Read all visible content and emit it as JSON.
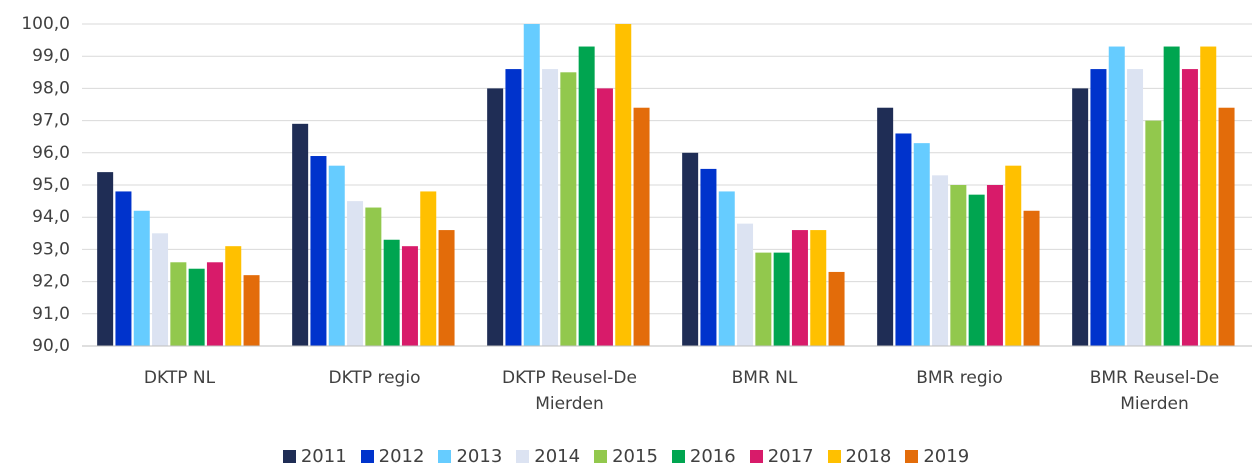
{
  "chart_data": {
    "type": "bar",
    "categories": [
      "DKTP NL",
      "DKTP regio",
      "DKTP Reusel-De Mierden",
      "BMR NL",
      "BMR regio",
      "BMR Reusel-De Mierden"
    ],
    "series": [
      {
        "name": "2011",
        "color": "#1f2d55",
        "values": [
          95.4,
          96.9,
          98.0,
          96.0,
          97.4,
          98.0
        ]
      },
      {
        "name": "2012",
        "color": "#0033cc",
        "values": [
          94.8,
          95.9,
          98.6,
          95.5,
          96.6,
          98.6
        ]
      },
      {
        "name": "2013",
        "color": "#66ccff",
        "values": [
          94.2,
          95.6,
          100.0,
          94.8,
          96.3,
          99.3
        ]
      },
      {
        "name": "2014",
        "color": "#dce3f2",
        "values": [
          93.5,
          94.5,
          98.6,
          93.8,
          95.3,
          98.6
        ]
      },
      {
        "name": "2015",
        "color": "#92c84d",
        "values": [
          92.6,
          94.3,
          98.5,
          92.9,
          95.0,
          97.0
        ]
      },
      {
        "name": "2016",
        "color": "#00a550",
        "values": [
          92.4,
          93.3,
          99.3,
          92.9,
          94.7,
          99.3
        ]
      },
      {
        "name": "2017",
        "color": "#d81b6a",
        "values": [
          92.6,
          93.1,
          98.0,
          93.6,
          95.0,
          98.6
        ]
      },
      {
        "name": "2018",
        "color": "#ffc000",
        "values": [
          93.1,
          94.8,
          100.0,
          93.6,
          95.6,
          99.3
        ]
      },
      {
        "name": "2019",
        "color": "#e36c0a",
        "values": [
          92.2,
          93.6,
          97.4,
          92.3,
          94.2,
          97.4
        ]
      }
    ],
    "ylim": [
      90,
      100
    ],
    "yticks": [
      {
        "value": 90,
        "label": "90,0"
      },
      {
        "value": 91,
        "label": "91,0"
      },
      {
        "value": 92,
        "label": "92,0"
      },
      {
        "value": 93,
        "label": "93,0"
      },
      {
        "value": 94,
        "label": "94,0"
      },
      {
        "value": 95,
        "label": "95,0"
      },
      {
        "value": 96,
        "label": "96,0"
      },
      {
        "value": 97,
        "label": "97,0"
      },
      {
        "value": 98,
        "label": "98,0"
      },
      {
        "value": 99,
        "label": "99,0"
      },
      {
        "value": 100,
        "label": "100,0"
      }
    ],
    "grid": true
  }
}
